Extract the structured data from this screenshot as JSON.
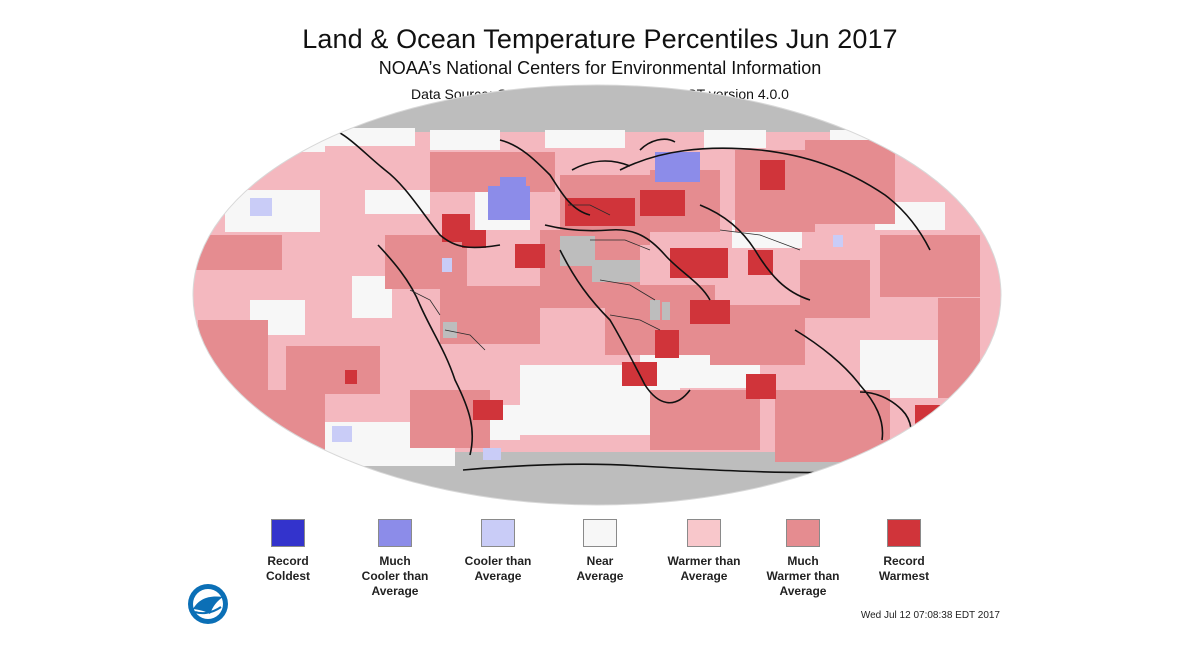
{
  "header": {
    "title": "Land & Ocean Temperature Percentiles Jun 2017",
    "subtitle": "NOAA’s National Centers for Environmental Information",
    "source": "Data Source: GHCN–M version 3.3.0 & ERSST version 4.0.0"
  },
  "legend": [
    {
      "key": "record_coldest",
      "label": "Record\nColdest",
      "color": "#3333cc"
    },
    {
      "key": "much_cooler",
      "label": "Much\nCooler than\nAverage",
      "color": "#8c8ce9"
    },
    {
      "key": "cooler",
      "label": "Cooler than\nAverage",
      "color": "#c9ccf7"
    },
    {
      "key": "near",
      "label": "Near\nAverage",
      "color": "#f7f7f7"
    },
    {
      "key": "warmer",
      "label": "Warmer than\nAverage",
      "color": "#f8c7cb"
    },
    {
      "key": "much_warmer",
      "label": "Much\nWarmer than\nAverage",
      "color": "#e58c90"
    },
    {
      "key": "record_warmest",
      "label": "Record\nWarmest",
      "color": "#d0343a"
    }
  ],
  "footer": {
    "timestamp": "Wed Jul 12 07:08:38 EDT 2017"
  },
  "map_colors": {
    "no_data": "#bdbdbd",
    "ocean_base": "#f4b8bf",
    "near": "#f7f7f7",
    "cool": "#c9ccf7",
    "much_cool": "#8c8ce9",
    "warm": "#e58c90",
    "record": "#d0343a",
    "coast": "#111111"
  },
  "logo": {
    "primary": "#0b6fb6",
    "secondary": "#ffffff"
  }
}
